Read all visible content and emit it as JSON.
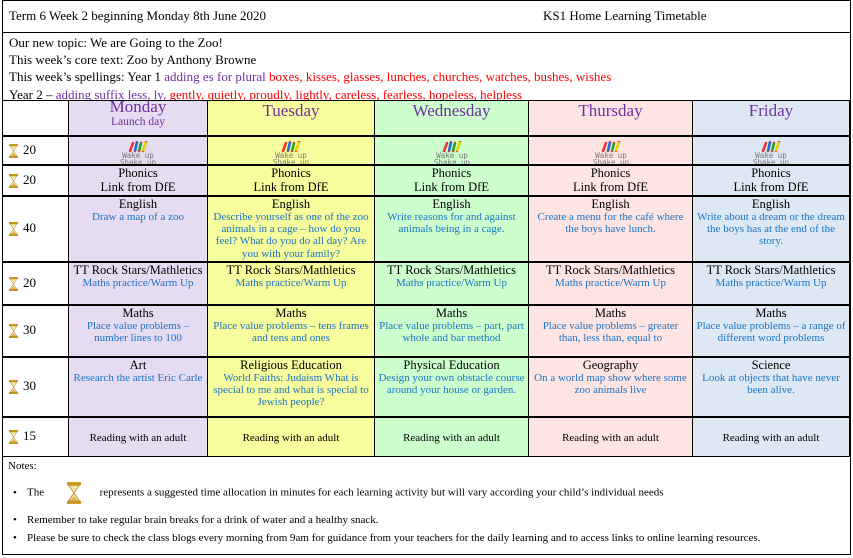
{
  "header": {
    "left": "Term 6 Week 2 beginning Monday 8th June 2020",
    "right": "KS1 Home Learning Timetable"
  },
  "info": {
    "topic": "Our new topic: We are Going to the Zoo!",
    "core_text": "This week’s core text: Zoo by Anthony Browne",
    "y1_prefix": "This week’s spellings: Year 1 ",
    "y1_rule": "adding es for plural",
    "y1_words": " boxes, kisses, glasses, lunches, churches, watches, bushes, wishes",
    "y2_prefix": "Year 2 – ",
    "y2_rule": "adding suffix less, ly, ",
    "y2_words": "gently, quietly, proudly, lightly, careless, fearless, hopeless, helpless"
  },
  "colors": {
    "monday": "#e6dcf2",
    "tuesday": "#f7fc9c",
    "wednesday": "#ccffcc",
    "thursday": "#ffe4e4",
    "friday": "#dde8f4",
    "day_title": "#7030a0",
    "description": "#1a73c8",
    "spelling_words": "#ff0000"
  },
  "days": [
    {
      "name": "Monday",
      "sub": "Launch day"
    },
    {
      "name": "Tuesday",
      "sub": ""
    },
    {
      "name": "Wednesday",
      "sub": ""
    },
    {
      "name": "Thursday",
      "sub": ""
    },
    {
      "name": "Friday",
      "sub": ""
    }
  ],
  "time_icon": "hourglass-icon",
  "wake_up_logo": "Wake up Shake up",
  "rows": [
    {
      "minutes": "20",
      "type": "wake",
      "cells": [
        {},
        {},
        {},
        {},
        {}
      ]
    },
    {
      "minutes": "20",
      "cells": [
        {
          "subject": "Phonics",
          "desc": "Link from DfE",
          "plain": true
        },
        {
          "subject": "Phonics",
          "desc": "Link from DfE",
          "plain": true
        },
        {
          "subject": "Phonics",
          "desc": "Link from DfE",
          "plain": true
        },
        {
          "subject": "Phonics",
          "desc": "Link from DfE",
          "plain": true
        },
        {
          "subject": "Phonics",
          "desc": "Link from DfE",
          "plain": true
        }
      ]
    },
    {
      "minutes": "40",
      "cells": [
        {
          "subject": "English",
          "desc": "Draw a map of a zoo"
        },
        {
          "subject": "English",
          "desc": "Describe yourself as one of the zoo animals in a cage – how do you feel? What do you do all day? Are you with your family?"
        },
        {
          "subject": "English",
          "desc": "Write reasons for and against animals being in a cage."
        },
        {
          "subject": "English",
          "desc": "Create a menu for the café where the boys have lunch."
        },
        {
          "subject": "English",
          "desc": "Write about a dream or the dream the boys has at the end of the story."
        }
      ]
    },
    {
      "minutes": "20",
      "cells": [
        {
          "subject": "TT Rock Stars/Mathletics",
          "desc": "Maths practice/Warm Up"
        },
        {
          "subject": "TT Rock Stars/Mathletics",
          "desc": "Maths practice/Warm Up"
        },
        {
          "subject": "TT Rock Stars/Mathletics",
          "desc": "Maths practice/Warm Up"
        },
        {
          "subject": "TT Rock Stars/Mathletics",
          "desc": "Maths practice/Warm Up"
        },
        {
          "subject": "TT Rock Stars/Mathletics",
          "desc": "Maths practice/Warm Up"
        }
      ]
    },
    {
      "minutes": "30",
      "cells": [
        {
          "subject": "Maths",
          "desc": "Place value problems – number lines to 100"
        },
        {
          "subject": "Maths",
          "desc": "Place value problems – tens frames and tens and ones"
        },
        {
          "subject": "Maths",
          "desc": "Place value problems – part, part whole and bar method"
        },
        {
          "subject": "Maths",
          "desc": "Place value problems – greater than, less than, equal to"
        },
        {
          "subject": "Maths",
          "desc": "Place value problems – a range of different word problems"
        }
      ]
    },
    {
      "minutes": "30",
      "cells": [
        {
          "subject": "Art",
          "desc": "Research the artist Eric Carle"
        },
        {
          "subject": "Religious Education",
          "desc": "World Faiths: Judaism What is special to me and what is special to Jewish people?"
        },
        {
          "subject": "Physical Education",
          "desc": "Design your own obstacle course around your house or garden."
        },
        {
          "subject": "Geography",
          "desc": "On a world map show where some zoo animals live"
        },
        {
          "subject": "Science",
          "desc": "Look at objects that have never been alive."
        }
      ]
    },
    {
      "minutes": "15",
      "type": "reading",
      "cells": [
        {
          "text": "Reading with an adult"
        },
        {
          "text": "Reading with an adult"
        },
        {
          "text": "Reading with an adult"
        },
        {
          "text": "Reading with an adult"
        },
        {
          "text": "Reading with an adult"
        }
      ]
    }
  ],
  "notes": {
    "title": "Notes:",
    "bullet1_a": "The",
    "bullet1_b": "represents a suggested time allocation in minutes for each learning activity but will vary according your child’s individual needs",
    "bullet2": "Remember to take regular brain breaks for a drink of water and a healthy snack.",
    "bullet3": "Please be sure to check the class blogs every morning from 9am for guidance from your teachers for the daily learning and to access links to online learning resources."
  }
}
